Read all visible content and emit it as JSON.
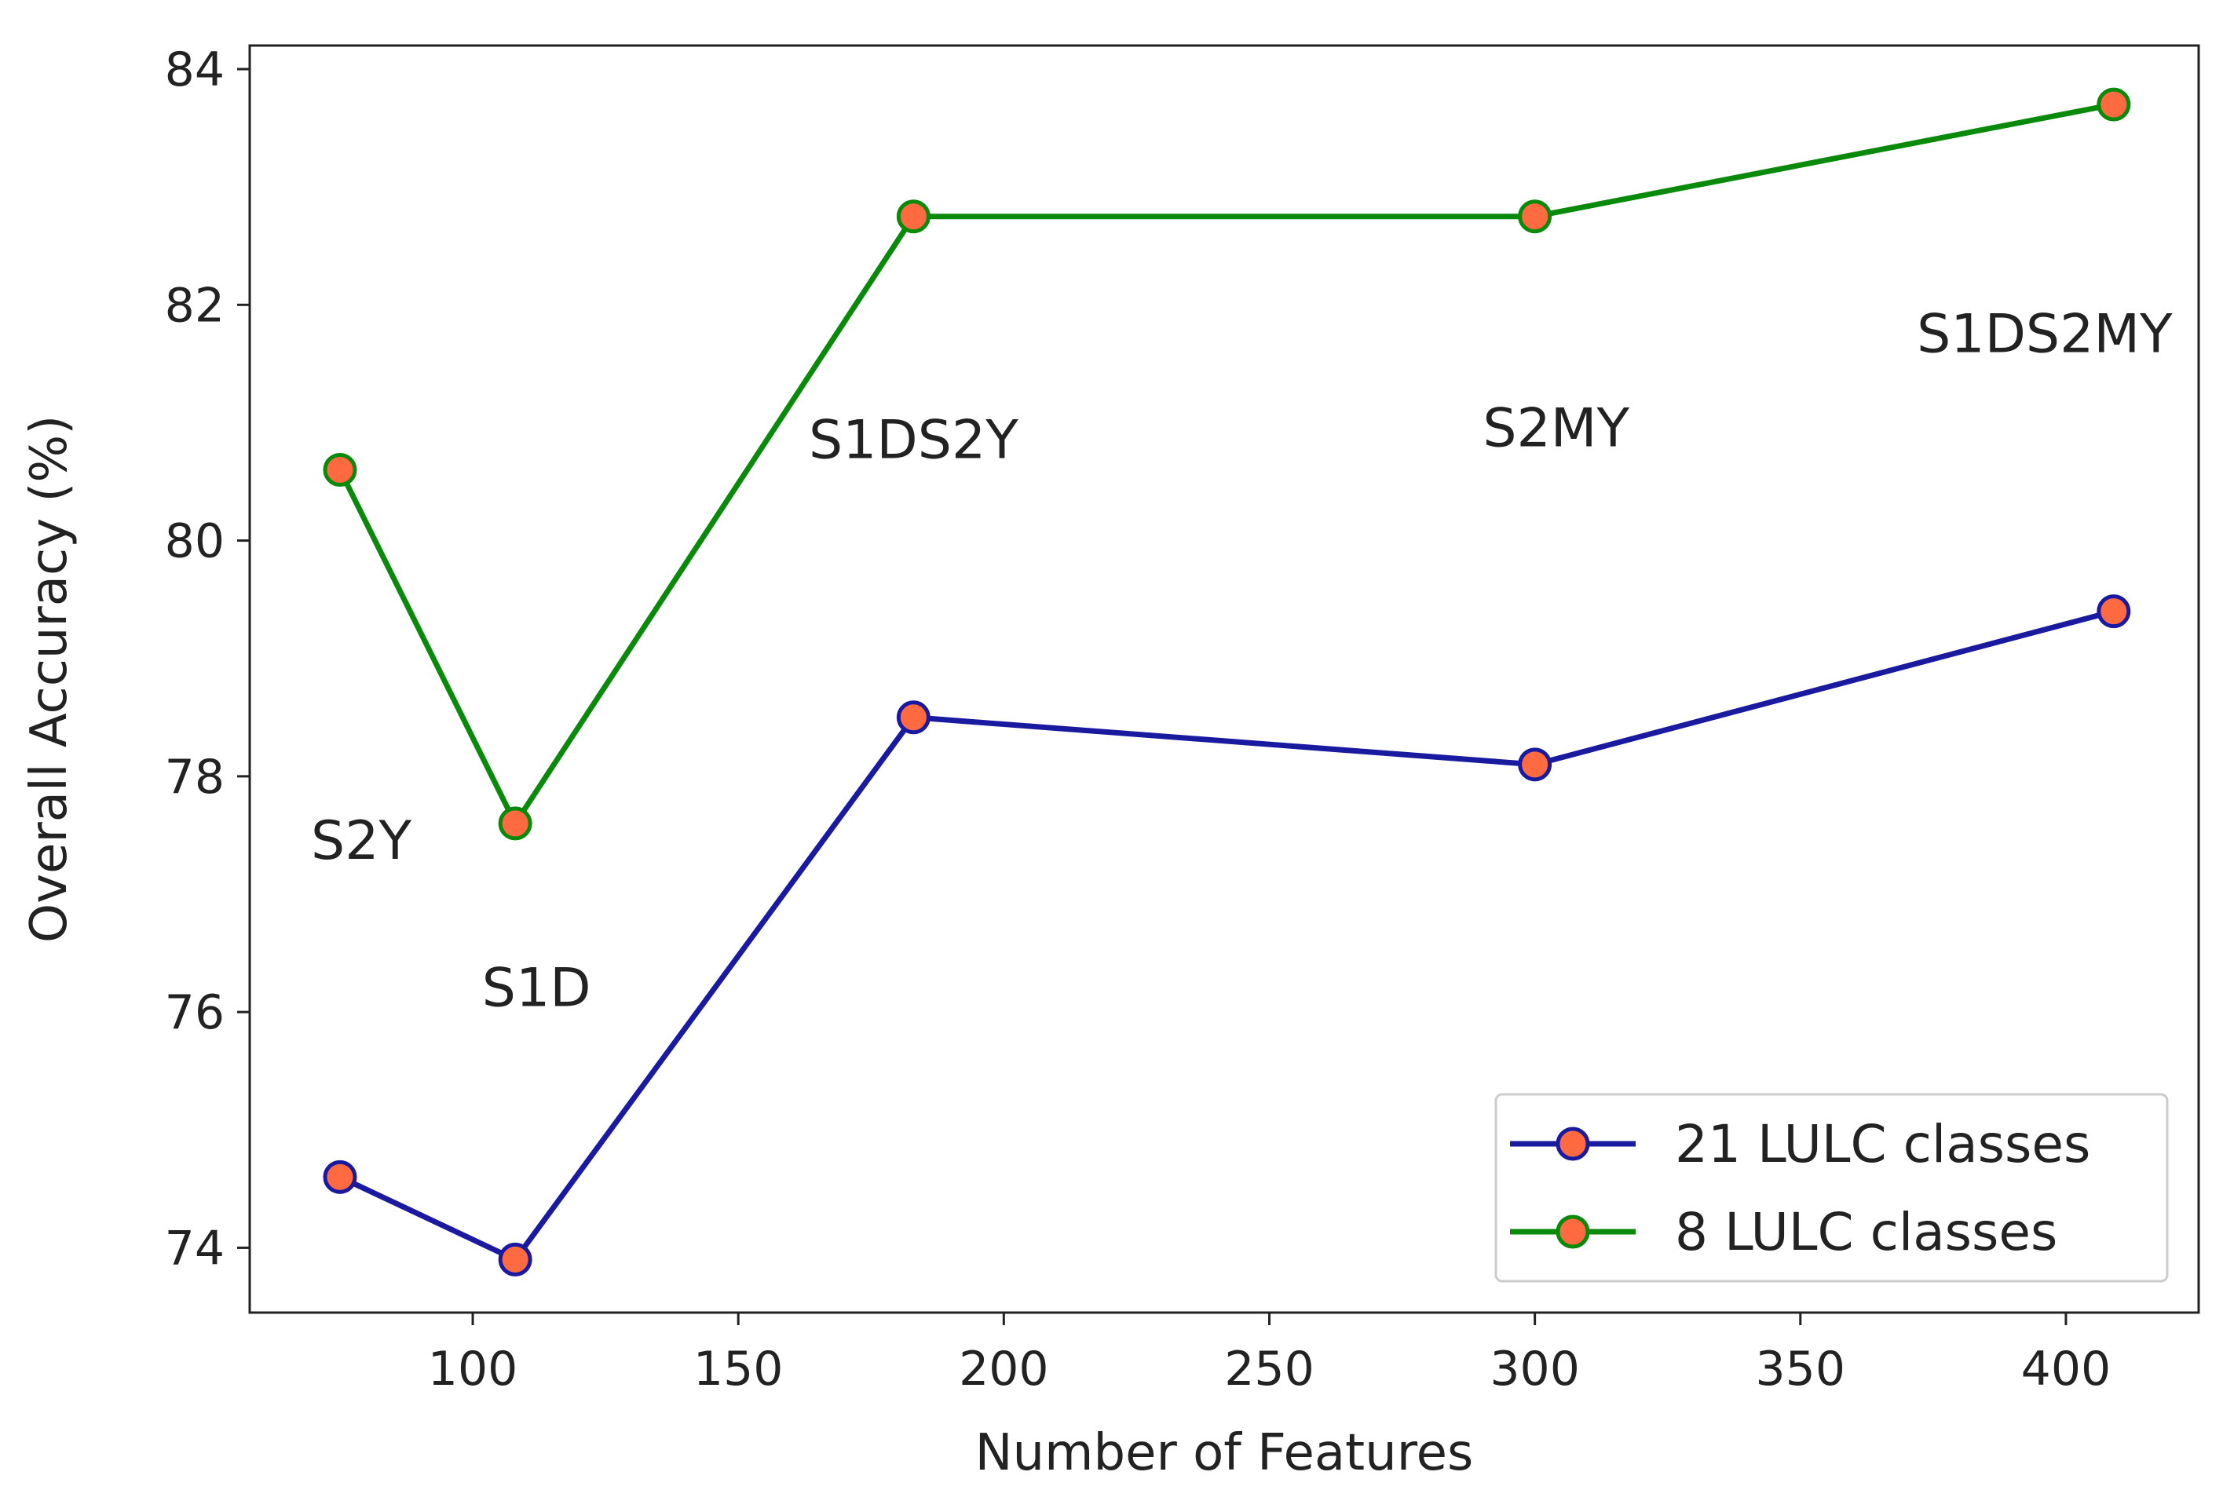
{
  "chart_data": {
    "type": "line",
    "title": "",
    "xlabel": "Number of Features",
    "ylabel": "Overall Accuracy (%)",
    "xlim": [
      58,
      425
    ],
    "ylim": [
      73.45,
      84.2
    ],
    "xticks": [
      100,
      150,
      200,
      250,
      300,
      350,
      400
    ],
    "yticks": [
      74,
      76,
      78,
      80,
      82,
      84
    ],
    "grid": false,
    "legend_position": "lower-right",
    "x": [
      75,
      108,
      183,
      300,
      409
    ],
    "series": [
      {
        "name": "21 LULC classes",
        "values": [
          74.6,
          73.9,
          78.5,
          78.1,
          79.4
        ],
        "line_color": "#1a1aa0",
        "marker_fill": "#ff6a40",
        "marker_edge": "#1a1aa0"
      },
      {
        "name": "8 LULC classes",
        "values": [
          80.6,
          77.6,
          82.75,
          82.75,
          83.7
        ],
        "line_color": "#0a8a0a",
        "marker_fill": "#ff6a40",
        "marker_edge": "#0a8a0a"
      }
    ],
    "annotations": [
      {
        "text": "S2Y",
        "x": 79,
        "y": 77.3
      },
      {
        "text": "S1D",
        "x": 112,
        "y": 76.05
      },
      {
        "text": "S1DS2Y",
        "x": 183,
        "y": 80.7
      },
      {
        "text": "S2MY",
        "x": 304,
        "y": 80.8
      },
      {
        "text": "S1DS2MY",
        "x": 396,
        "y": 81.6
      }
    ]
  }
}
